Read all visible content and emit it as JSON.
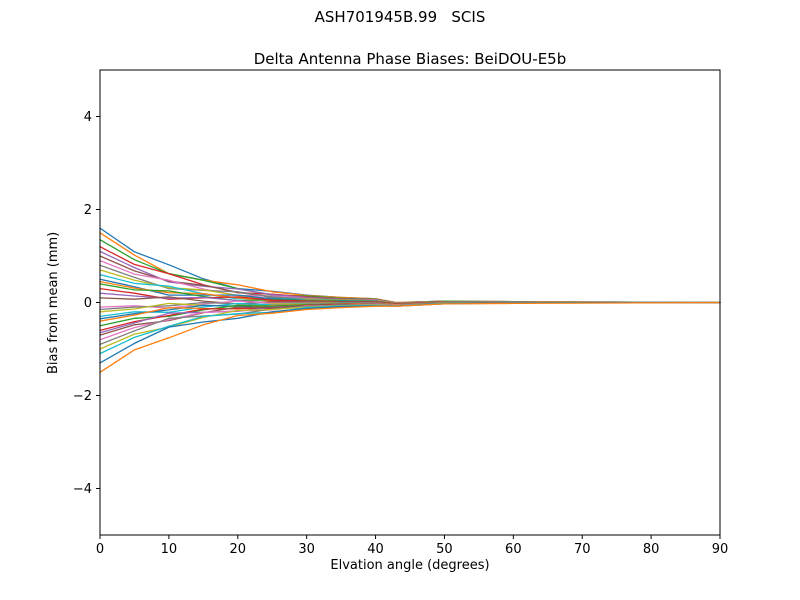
{
  "suptitle": "ASH701945B.99   SCIS",
  "chart_data": {
    "type": "line",
    "title": "Delta Antenna Phase Biases: BeiDOU-E5b",
    "xlabel": "Elvation angle (degrees)",
    "ylabel": "Bias from mean (mm)",
    "xlim": [
      0,
      90
    ],
    "ylim": [
      -5,
      5
    ],
    "xticks": [
      0,
      10,
      20,
      30,
      40,
      50,
      60,
      70,
      80,
      90
    ],
    "yticks": [
      -4,
      -2,
      0,
      2,
      4
    ],
    "grid": false,
    "legend": "none",
    "x": [
      0,
      5,
      10,
      15,
      20,
      25,
      30,
      35,
      40,
      43,
      50,
      60,
      75,
      90
    ],
    "palette": [
      "#1f77b4",
      "#ff7f0e",
      "#2ca02c",
      "#d62728",
      "#9467bd",
      "#8c564b",
      "#e377c2",
      "#7f7f7f",
      "#bcbd22",
      "#17becf"
    ],
    "series": [
      {
        "values": [
          1.6,
          1.09,
          0.81,
          0.51,
          0.3,
          0.24,
          0.16,
          0.11,
          0.08,
          0.0,
          0.03,
          0.02,
          0.01,
          0
        ]
      },
      {
        "values": [
          1.5,
          1.02,
          0.62,
          0.48,
          0.38,
          0.23,
          0.15,
          0.11,
          0.08,
          0.0,
          0.03,
          0.02,
          0.01,
          0
        ]
      },
      {
        "values": [
          1.35,
          0.92,
          0.62,
          0.48,
          0.3,
          0.16,
          0.14,
          0.09,
          0.07,
          -0.01,
          0.03,
          0.01,
          0,
          0
        ]
      },
      {
        "values": [
          1.2,
          0.82,
          0.62,
          0.38,
          0.21,
          0.18,
          0.12,
          0.08,
          0.06,
          -0.01,
          0.02,
          0.01,
          0,
          0
        ]
      },
      {
        "values": [
          1.1,
          0.75,
          0.44,
          0.35,
          0.29,
          0.17,
          0.11,
          0.08,
          0.06,
          -0.01,
          0.02,
          0.01,
          0,
          0
        ]
      },
      {
        "values": [
          1.0,
          0.68,
          0.46,
          0.37,
          0.22,
          0.11,
          0.1,
          0.07,
          0.05,
          -0.02,
          0.02,
          0.01,
          0,
          0
        ]
      },
      {
        "values": [
          0.9,
          0.61,
          0.48,
          0.29,
          0.15,
          0.14,
          0.09,
          0.06,
          0.05,
          -0.02,
          0.02,
          0.01,
          0,
          0
        ]
      },
      {
        "values": [
          0.8,
          0.54,
          0.3,
          0.26,
          0.23,
          0.12,
          0.08,
          0.06,
          0.04,
          -0.02,
          0.02,
          0.01,
          0,
          0
        ]
      },
      {
        "values": [
          0.7,
          0.48,
          0.32,
          0.27,
          0.15,
          0.07,
          0.07,
          0.05,
          0.04,
          -0.02,
          0.01,
          0.01,
          0,
          0
        ]
      },
      {
        "values": [
          0.6,
          0.41,
          0.35,
          0.19,
          0.08,
          0.09,
          0.06,
          0.04,
          0.03,
          -0.03,
          0.01,
          0.01,
          0,
          0
        ]
      },
      {
        "values": [
          0.5,
          0.34,
          0.16,
          0.16,
          0.16,
          0.08,
          0.05,
          0.04,
          0.03,
          -0.03,
          0.01,
          0.01,
          0,
          0
        ]
      },
      {
        "values": [
          0.45,
          0.31,
          0.21,
          0.19,
          0.1,
          0.03,
          0.05,
          0.03,
          0.02,
          -0.03,
          0.01,
          0,
          0,
          0
        ]
      },
      {
        "values": [
          0.4,
          0.27,
          0.25,
          0.13,
          0.04,
          0.06,
          0.04,
          0.03,
          0.02,
          -0.03,
          0.01,
          0,
          0,
          0
        ]
      },
      {
        "values": [
          0.3,
          0.2,
          0.07,
          0.1,
          0.12,
          0.05,
          0.03,
          0.02,
          0.02,
          -0.03,
          0.01,
          0,
          0,
          0
        ]
      },
      {
        "values": [
          0.2,
          0.14,
          0.09,
          0.11,
          0.04,
          -0.01,
          0.02,
          0.01,
          0.01,
          -0.04,
          0,
          0,
          0,
          0
        ]
      },
      {
        "values": [
          0.1,
          0.07,
          0.12,
          0.03,
          -0.03,
          0.02,
          0.01,
          0.01,
          0.01,
          -0.04,
          0,
          0,
          0,
          0
        ]
      },
      {
        "values": [
          -0.1,
          -0.07,
          -0.12,
          -0.03,
          0.03,
          -0.02,
          -0.01,
          -0.01,
          -0.01,
          -0.05,
          0,
          0,
          0,
          0
        ]
      },
      {
        "values": [
          -0.15,
          -0.1,
          -0.07,
          0.0,
          -0.03,
          -0.06,
          -0.02,
          -0.01,
          -0.01,
          -0.05,
          0,
          0,
          0,
          0
        ]
      },
      {
        "values": [
          -0.2,
          -0.14,
          -0.02,
          -0.06,
          -0.09,
          -0.03,
          -0.02,
          -0.01,
          -0.01,
          -0.05,
          0,
          0,
          0,
          0
        ]
      },
      {
        "values": [
          -0.3,
          -0.2,
          -0.21,
          -0.1,
          -0.02,
          -0.05,
          -0.03,
          -0.02,
          -0.02,
          -0.05,
          -0.01,
          0,
          0,
          0
        ]
      },
      {
        "values": [
          -0.35,
          -0.24,
          -0.16,
          -0.06,
          -0.08,
          -0.09,
          -0.04,
          -0.02,
          -0.02,
          -0.05,
          -0.01,
          0,
          0,
          0
        ]
      },
      {
        "values": [
          -0.4,
          -0.27,
          -0.11,
          -0.13,
          -0.14,
          -0.06,
          -0.04,
          -0.03,
          -0.02,
          -0.05,
          -0.01,
          0,
          0,
          0
        ]
      },
      {
        "values": [
          -0.5,
          -0.34,
          -0.3,
          -0.16,
          -0.06,
          -0.08,
          -0.05,
          -0.04,
          -0.03,
          -0.06,
          -0.01,
          -0.01,
          0,
          0
        ]
      },
      {
        "values": [
          -0.6,
          -0.41,
          -0.28,
          -0.14,
          -0.13,
          -0.13,
          -0.06,
          -0.04,
          -0.03,
          -0.06,
          -0.01,
          -0.01,
          0,
          0
        ]
      },
      {
        "values": [
          -0.65,
          -0.44,
          -0.23,
          -0.21,
          -0.19,
          -0.1,
          -0.07,
          -0.05,
          -0.03,
          -0.06,
          -0.01,
          -0.01,
          0,
          0
        ]
      },
      {
        "values": [
          -0.7,
          -0.48,
          -0.39,
          -0.22,
          -0.1,
          -0.11,
          -0.07,
          -0.05,
          -0.04,
          -0.06,
          -0.01,
          -0.01,
          0,
          0
        ]
      },
      {
        "values": [
          -0.8,
          -0.54,
          -0.37,
          -0.21,
          -0.18,
          -0.16,
          -0.08,
          -0.06,
          -0.04,
          -0.06,
          -0.02,
          -0.01,
          0,
          0
        ]
      },
      {
        "values": [
          -0.9,
          -0.61,
          -0.34,
          -0.29,
          -0.25,
          -0.14,
          -0.09,
          -0.06,
          -0.05,
          -0.07,
          -0.02,
          -0.01,
          0,
          0
        ]
      },
      {
        "values": [
          -1.0,
          -0.68,
          -0.53,
          -0.32,
          -0.17,
          -0.15,
          -0.1,
          -0.07,
          -0.05,
          -0.07,
          -0.02,
          -0.01,
          0,
          0
        ]
      },
      {
        "values": [
          -1.1,
          -0.75,
          -0.51,
          -0.3,
          -0.24,
          -0.21,
          -0.11,
          -0.08,
          -0.06,
          -0.07,
          -0.02,
          -0.01,
          0,
          0
        ]
      },
      {
        "values": [
          -1.3,
          -0.88,
          -0.53,
          -0.42,
          -0.34,
          -0.2,
          -0.13,
          -0.09,
          -0.07,
          -0.08,
          -0.03,
          -0.01,
          0,
          0
        ]
      },
      {
        "values": [
          -1.5,
          -1.02,
          -0.76,
          -0.48,
          -0.28,
          -0.23,
          -0.15,
          -0.11,
          -0.08,
          -0.08,
          -0.03,
          -0.02,
          -0.01,
          0
        ]
      }
    ]
  }
}
